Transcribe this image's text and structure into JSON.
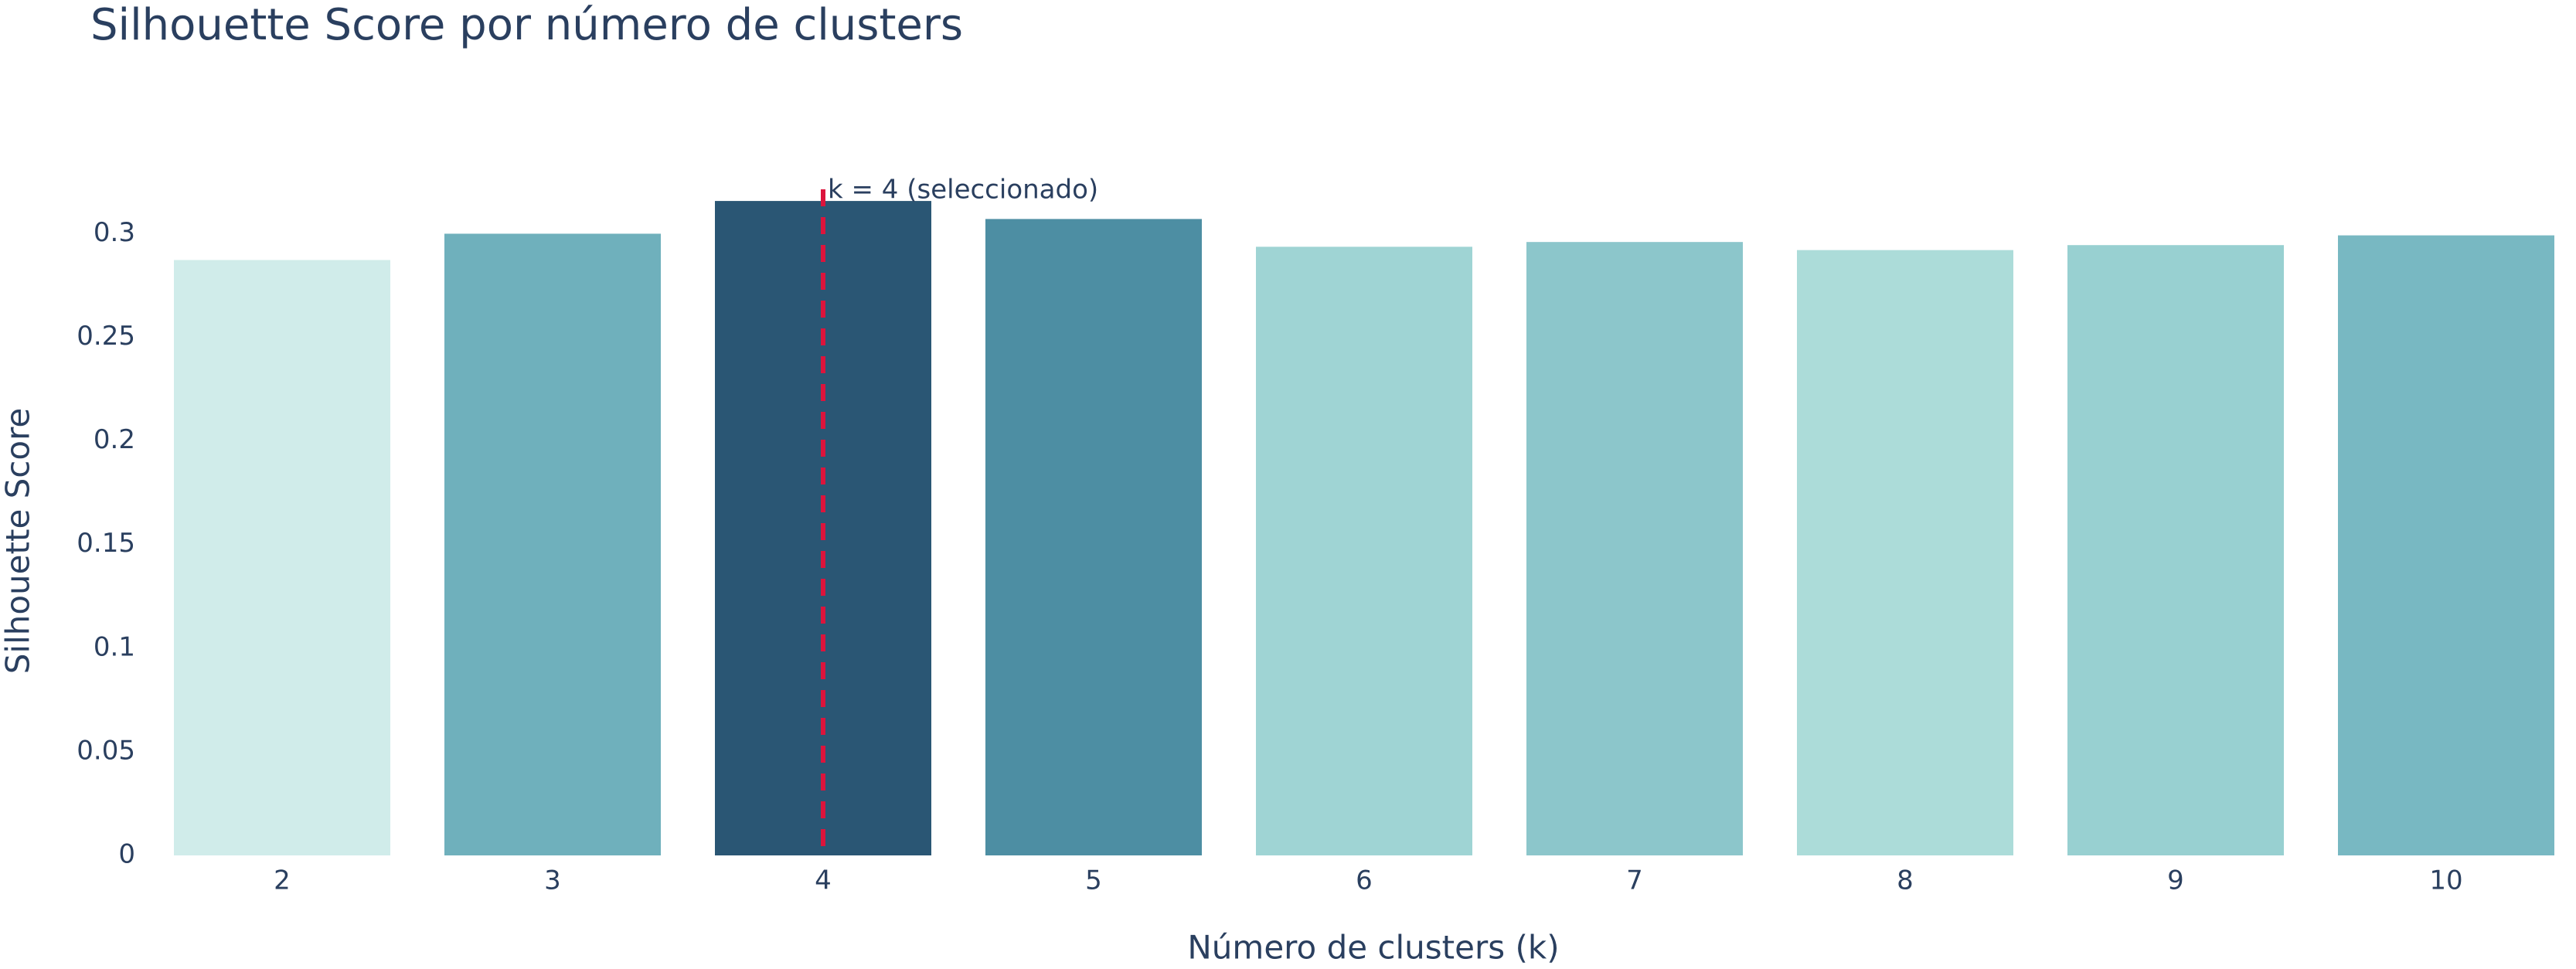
{
  "chart_data": {
    "type": "bar",
    "title": "Silhouette Score por número de clusters",
    "x_label": "Número de clusters (k)",
    "y_label": "Silhouette Score",
    "categories": [
      "2",
      "3",
      "4",
      "5",
      "6",
      "7",
      "8",
      "9",
      "10"
    ],
    "values": [
      0.2873,
      0.3,
      0.3158,
      0.3071,
      0.2937,
      0.296,
      0.2921,
      0.2945,
      0.2992
    ],
    "colors": [
      "#d0ecea",
      "#6fb0bc",
      "#2a5674",
      "#4d8ea3",
      "#9fd4d4",
      "#8cc6cb",
      "#acdcd9",
      "#98d0d1",
      "#78b8c2"
    ],
    "ylim": [
      0,
      0.33
    ],
    "yticks": [
      0,
      0.05,
      0.1,
      0.15,
      0.2,
      0.25,
      0.3
    ],
    "grid": false,
    "vline": {
      "x": "4",
      "label": "k = 4 (seleccionado)",
      "color": "#dc143c"
    }
  }
}
